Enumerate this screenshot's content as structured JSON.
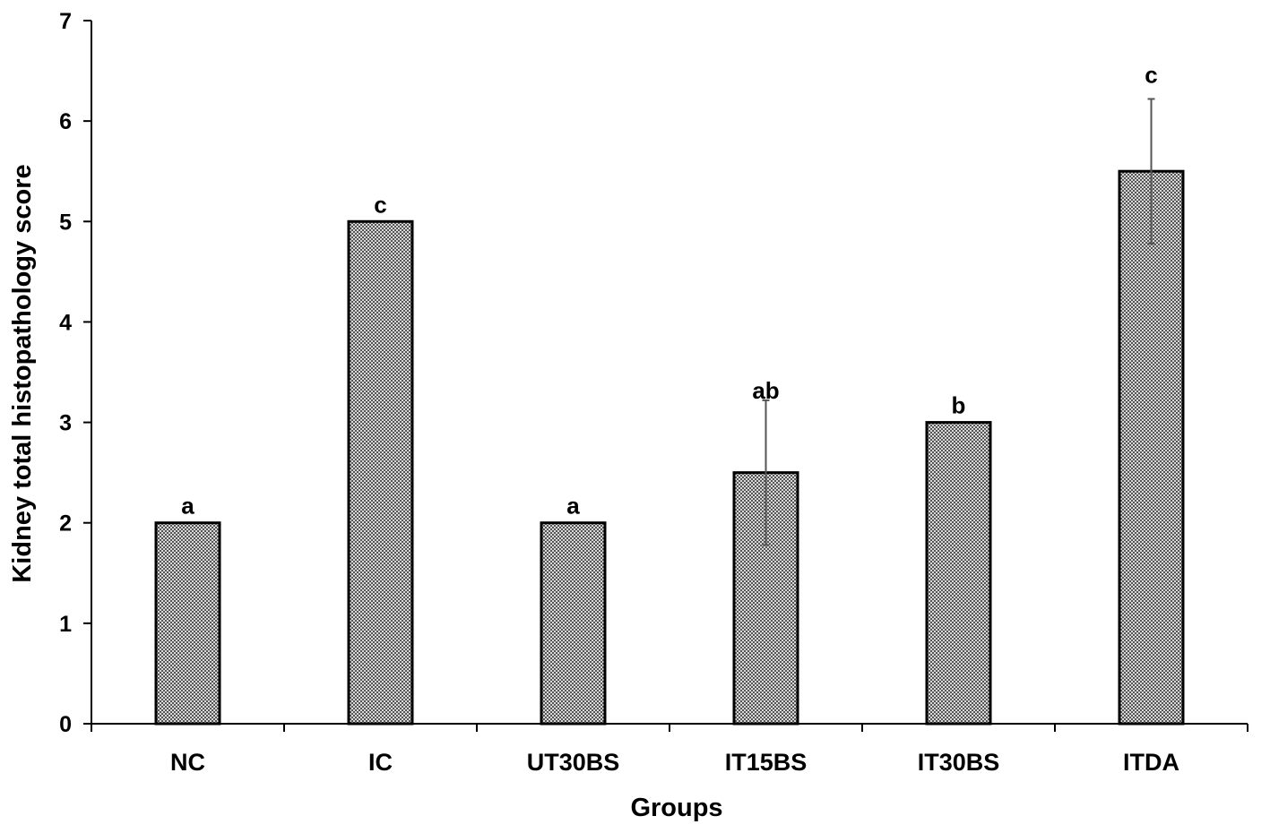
{
  "chart_data": {
    "type": "bar",
    "title": "",
    "xlabel": "Groups",
    "ylabel": "Kidney total histopathology score",
    "categories": [
      "NC",
      "IC",
      "UT30BS",
      "IT15BS",
      "IT30BS",
      "ITDA"
    ],
    "values": [
      2,
      5,
      2,
      2.5,
      3,
      5.5
    ],
    "error": [
      0,
      0,
      0,
      0.72,
      0,
      0.72
    ],
    "significance_letters": [
      "a",
      "c",
      "a",
      "ab",
      "b",
      "c"
    ],
    "ylim": [
      0,
      7
    ],
    "yticks": [
      0,
      1,
      2,
      3,
      4,
      5,
      6,
      7
    ],
    "grid": false,
    "legend": "none",
    "colors": {
      "bar_fill": "#8c8c8c",
      "bar_edge": "#000000",
      "error_bar": "#555555",
      "axis": "#000000"
    }
  }
}
